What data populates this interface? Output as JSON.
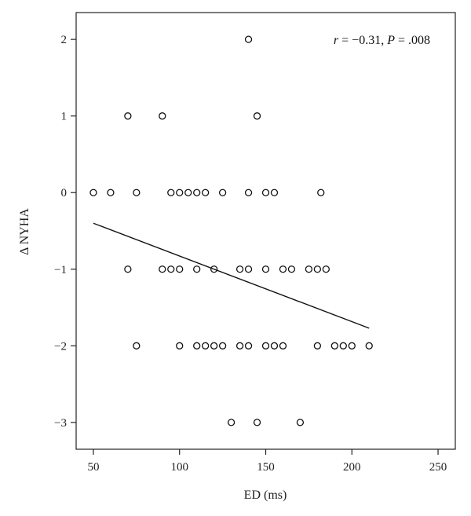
{
  "chart_data": {
    "type": "scatter",
    "xlabel": "ED (ms)",
    "ylabel": "Δ NYHA",
    "xlim": [
      40,
      260
    ],
    "ylim": [
      -3.35,
      2.35
    ],
    "xticks": [
      50,
      100,
      150,
      200,
      250
    ],
    "yticks": [
      2,
      1,
      0,
      -1,
      -2,
      -3
    ],
    "xtick_labels": [
      "50",
      "100",
      "150",
      "200",
      "250"
    ],
    "ytick_labels": [
      "2",
      "1",
      "0",
      "−1",
      "−2",
      "−3"
    ],
    "grid": false,
    "annotation": {
      "r_symbol": "r",
      "r_text": " = −0.31, ",
      "p_symbol": "P",
      "p_text": " = .008"
    },
    "series": [
      {
        "points": [
          [
            140,
            2
          ],
          [
            70,
            1
          ],
          [
            90,
            1
          ],
          [
            145,
            1
          ],
          [
            50,
            0
          ],
          [
            60,
            0
          ],
          [
            75,
            0
          ],
          [
            95,
            0
          ],
          [
            100,
            0
          ],
          [
            105,
            0
          ],
          [
            110,
            0
          ],
          [
            115,
            0
          ],
          [
            125,
            0
          ],
          [
            140,
            0
          ],
          [
            150,
            0
          ],
          [
            155,
            0
          ],
          [
            182,
            0
          ],
          [
            70,
            -1
          ],
          [
            90,
            -1
          ],
          [
            95,
            -1
          ],
          [
            100,
            -1
          ],
          [
            110,
            -1
          ],
          [
            120,
            -1
          ],
          [
            135,
            -1
          ],
          [
            140,
            -1
          ],
          [
            150,
            -1
          ],
          [
            160,
            -1
          ],
          [
            165,
            -1
          ],
          [
            175,
            -1
          ],
          [
            180,
            -1
          ],
          [
            185,
            -1
          ],
          [
            75,
            -2
          ],
          [
            100,
            -2
          ],
          [
            110,
            -2
          ],
          [
            115,
            -2
          ],
          [
            120,
            -2
          ],
          [
            125,
            -2
          ],
          [
            135,
            -2
          ],
          [
            140,
            -2
          ],
          [
            150,
            -2
          ],
          [
            155,
            -2
          ],
          [
            160,
            -2
          ],
          [
            180,
            -2
          ],
          [
            190,
            -2
          ],
          [
            195,
            -2
          ],
          [
            200,
            -2
          ],
          [
            210,
            -2
          ],
          [
            130,
            -3
          ],
          [
            145,
            -3
          ],
          [
            170,
            -3
          ]
        ]
      }
    ],
    "fit_line": {
      "x": [
        50,
        210
      ],
      "y": [
        -0.4,
        -1.77
      ]
    }
  }
}
